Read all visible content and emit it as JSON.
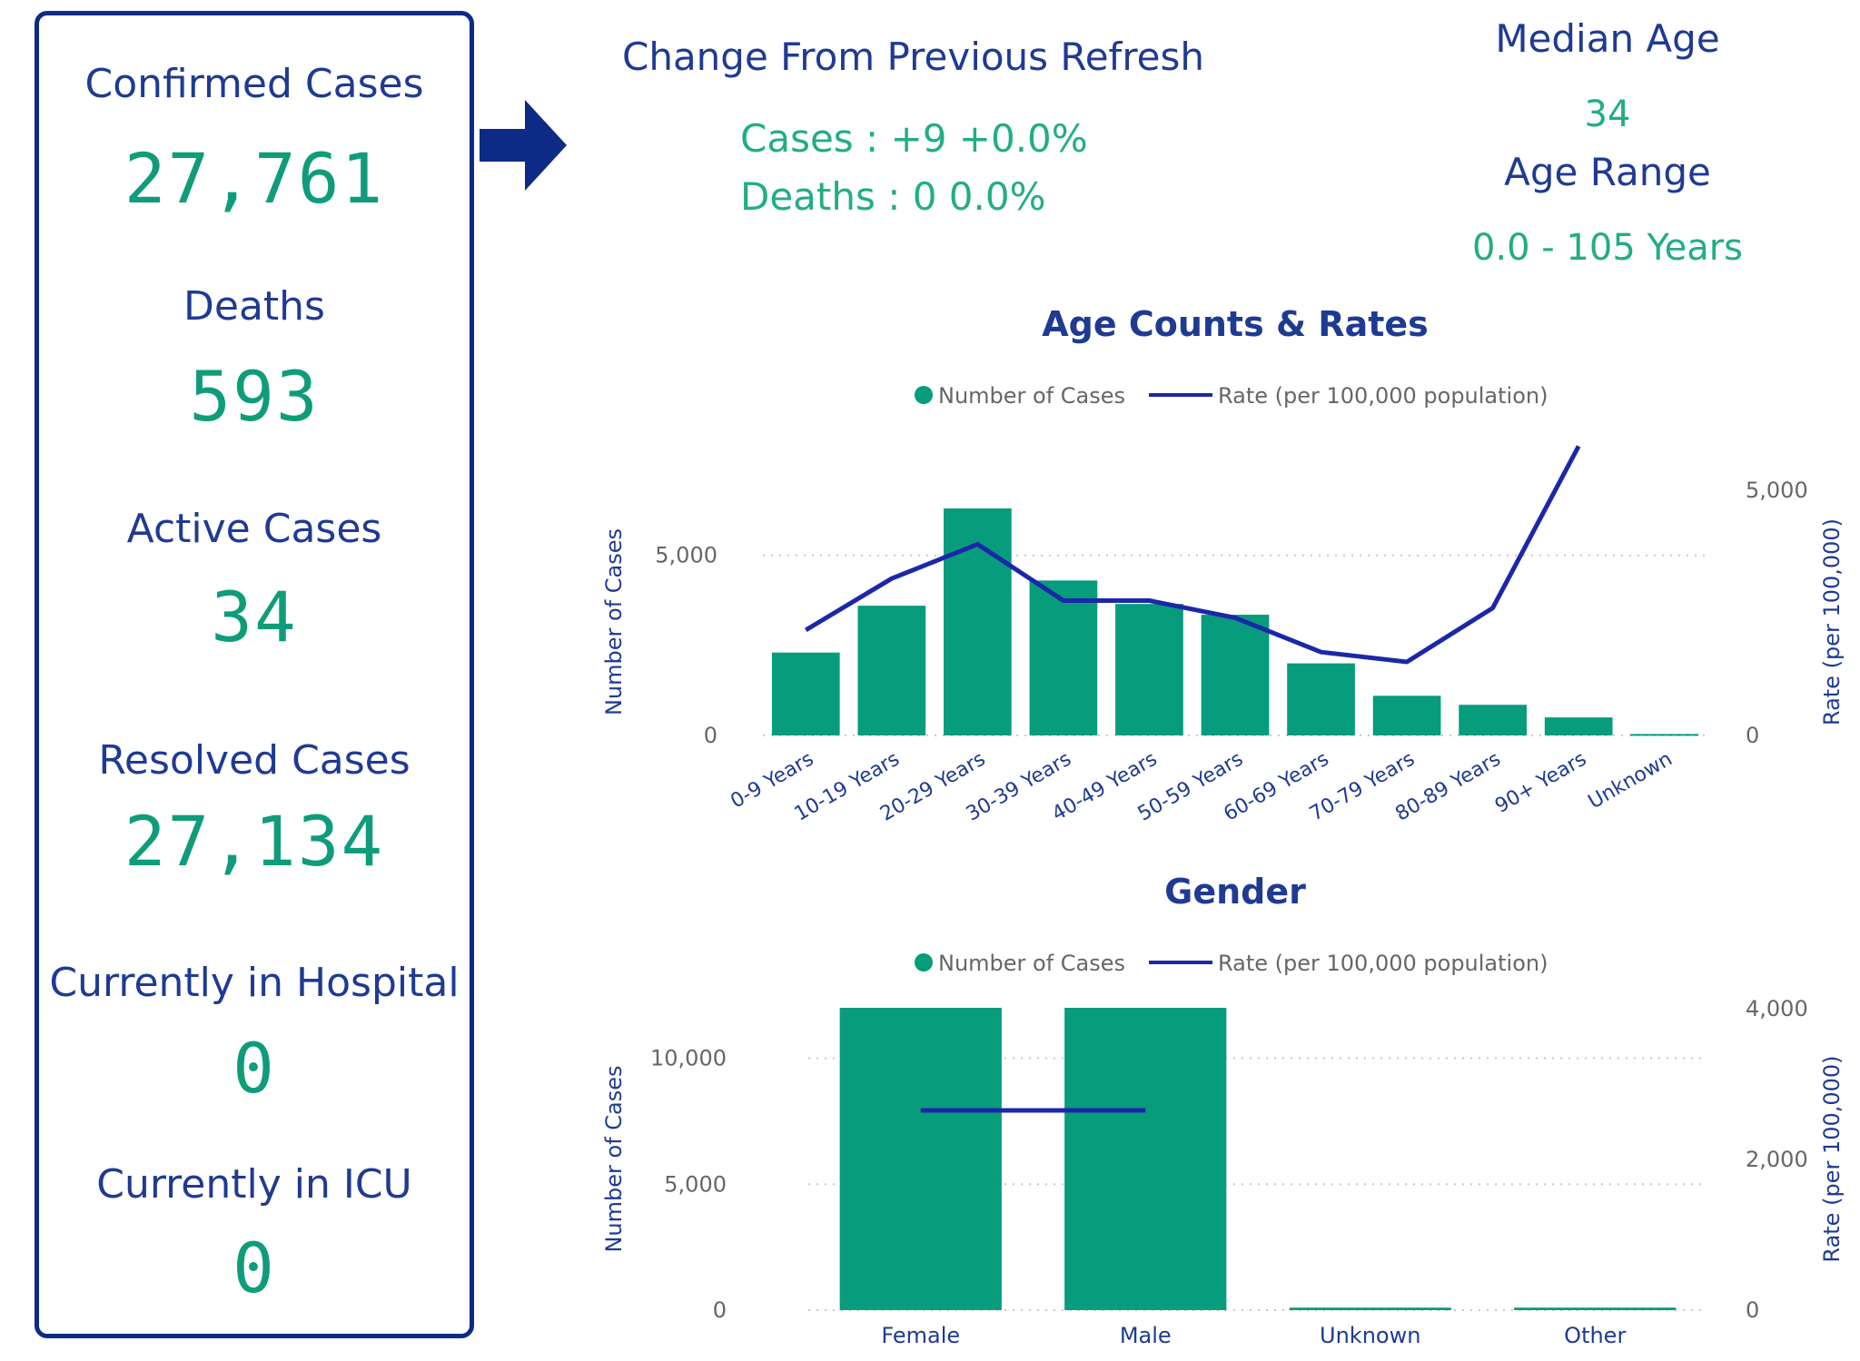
{
  "colors": {
    "navy": "#1f3a93",
    "border": "#0d2a86",
    "green": "#0f9c7a",
    "green_light": "#22ad85",
    "bar": "#069c7c",
    "line": "#1c27a8",
    "axis_text": "#666666"
  },
  "stats": [
    {
      "label": "Confirmed Cases",
      "value": "27,761"
    },
    {
      "label": "Deaths",
      "value": "593"
    },
    {
      "label": "Active Cases",
      "value": "34"
    },
    {
      "label": "Resolved Cases",
      "value": "27,134"
    },
    {
      "label": "Currently in Hospital",
      "value": "0"
    },
    {
      "label": "Currently in ICU",
      "value": "0"
    }
  ],
  "arrow_icon": "right-arrow-icon",
  "change": {
    "title": "Change From Previous Refresh",
    "cases": "Cases : +9 +0.0%",
    "deaths": "Deaths : 0 0.0%"
  },
  "age_summary": {
    "median_label": "Median Age",
    "median_value": "34",
    "range_label": "Age Range",
    "range_value": "0.0 - 105 Years"
  },
  "chart_data": [
    {
      "type": "bar",
      "title": "Age Counts & Rates",
      "legend": [
        "Number of Cases",
        "Rate (per 100,000 population)"
      ],
      "legend_position": "top-center",
      "categories": [
        "0-9 Years",
        "10-19 Years",
        "20-29 Years",
        "30-39 Years",
        "40-49 Years",
        "50-59 Years",
        "60-69 Years",
        "70-79 Years",
        "80-89 Years",
        "90+ Years",
        "Unknown"
      ],
      "series": [
        {
          "name": "Number of Cases",
          "type": "bar",
          "axis": "left",
          "values": [
            2300,
            3600,
            6300,
            4300,
            3650,
            3350,
            2000,
            1100,
            850,
            500,
            40
          ]
        },
        {
          "name": "Rate (per 100,000 population)",
          "type": "line",
          "axis": "right",
          "values": [
            2150,
            3200,
            3900,
            2750,
            2750,
            2400,
            1700,
            1500,
            2600,
            5900,
            null
          ]
        }
      ],
      "ylabel": "Number of Cases",
      "y2label": "Rate (per 100,000)",
      "ylim": [
        0,
        6300
      ],
      "y2lim": [
        0,
        5000
      ],
      "yticks": [
        0,
        5000
      ],
      "ytick_labels": [
        "0",
        "5,000"
      ],
      "y2ticks": [
        0,
        5000
      ],
      "y2tick_labels": [
        "0",
        "5,000"
      ],
      "grid": true
    },
    {
      "type": "bar",
      "title": "Gender",
      "legend": [
        "Number of Cases",
        "Rate (per 100,000 population)"
      ],
      "legend_position": "top-center",
      "categories": [
        "Female",
        "Male",
        "Unknown",
        "Other"
      ],
      "series": [
        {
          "name": "Number of Cases",
          "type": "bar",
          "axis": "left",
          "values": [
            12000,
            12000,
            100,
            100
          ]
        },
        {
          "name": "Rate (per 100,000 population)",
          "type": "line",
          "axis": "right",
          "values": [
            2650,
            2650,
            null,
            null
          ]
        }
      ],
      "ylabel": "Number of Cases",
      "y2label": "Rate (per 100,000)",
      "ylim": [
        0,
        12000
      ],
      "y2lim": [
        0,
        4000
      ],
      "yticks": [
        0,
        5000,
        10000
      ],
      "ytick_labels": [
        "0",
        "5,000",
        "10,000"
      ],
      "y2ticks": [
        0,
        2000,
        4000
      ],
      "y2tick_labels": [
        "0",
        "2,000",
        "4,000"
      ],
      "grid": true
    }
  ]
}
